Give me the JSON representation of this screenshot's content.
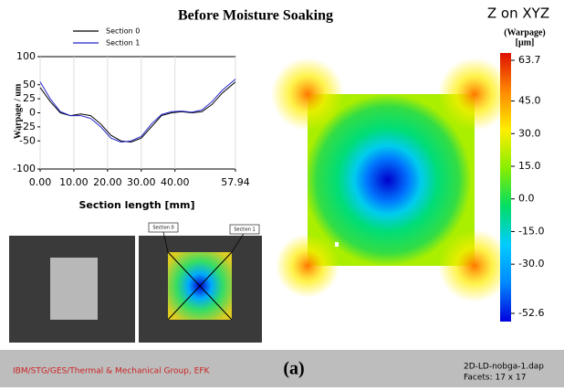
{
  "chart_data": [
    {
      "type": "line",
      "title": "Before Moisture Soaking",
      "x_label": "Section length [mm]",
      "y_label": "Warpage / um",
      "x": [
        0,
        3,
        6,
        9,
        12,
        15,
        18,
        21,
        24,
        27,
        30,
        33,
        36,
        39,
        42,
        45,
        48,
        51,
        54,
        57.94
      ],
      "series": [
        {
          "name": "Section 0",
          "color": "#000000",
          "values": [
            45,
            20,
            0,
            -5,
            -2,
            -5,
            -20,
            -40,
            -50,
            -52,
            -45,
            -25,
            -5,
            0,
            2,
            0,
            2,
            15,
            35,
            55
          ]
        },
        {
          "name": "Section 1",
          "color": "#2222cc",
          "values": [
            55,
            25,
            2,
            -5,
            -5,
            -10,
            -25,
            -45,
            -52,
            -50,
            -42,
            -20,
            -3,
            2,
            3,
            1,
            5,
            20,
            40,
            60
          ]
        }
      ],
      "xlim": [
        0,
        57.94
      ],
      "xticks": [
        {
          "value": 0,
          "label": "0.00"
        },
        {
          "value": 10,
          "label": "10.00"
        },
        {
          "value": 20,
          "label": "20.00"
        },
        {
          "value": 30,
          "label": "30.00"
        },
        {
          "value": 40,
          "label": "40.00"
        },
        57.94
      ],
      "ylim": [
        -100,
        100
      ],
      "yticks": [
        100,
        50,
        25,
        0,
        -25,
        -50,
        -100
      ],
      "grid": true
    },
    {
      "type": "colorbar",
      "title": "Z on XYZ",
      "subtitle": "(Warpage)",
      "unit": "[µm]",
      "clim": [
        -52.6,
        63.7
      ],
      "ticks": [
        63.7,
        {
          "value": 45,
          "label": "45.0"
        },
        {
          "value": 30,
          "label": "30.0"
        },
        {
          "value": 15,
          "label": "15.0"
        },
        {
          "value": 0,
          "label": "0.0"
        },
        {
          "value": -15,
          "label": "-15.0"
        },
        {
          "value": -30,
          "label": "-30.0"
        },
        -52.6
      ],
      "colors": [
        "#0000dd",
        "#0088ff",
        "#00ccff",
        "#00dd66",
        "#88ee00",
        "#ffee00",
        "#ff8800",
        "#dd1100"
      ]
    }
  ],
  "photo": {
    "callouts": [
      "Section 0",
      "Section 1"
    ]
  },
  "footer": {
    "group": "IBM/STG/GES/Thermal & Mechanical Group, EFK",
    "label": "(a)",
    "file": "2D-LD-nobga-1.dap",
    "facets": "Facets: 17 x 17"
  }
}
